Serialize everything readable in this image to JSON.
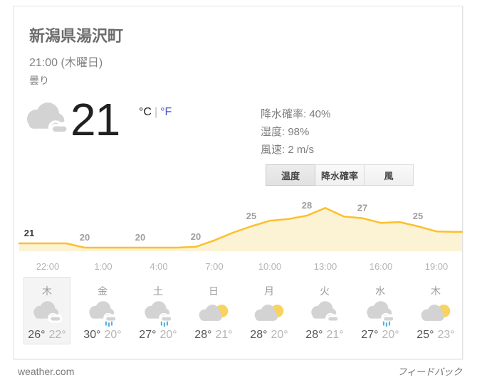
{
  "header": {
    "location": "新潟県湯沢町",
    "datetime": "21:00 (木曜日)",
    "condition": "曇り"
  },
  "current": {
    "temp": "21",
    "unit_c": "°C",
    "unit_sep": "|",
    "unit_f": "°F",
    "icon": "cloudy",
    "details": [
      {
        "label": "降水確率",
        "value": "40%"
      },
      {
        "label": "湿度",
        "value": "98%"
      },
      {
        "label": "風速",
        "value": "2 m/s"
      }
    ]
  },
  "tabs": [
    {
      "label": "温度",
      "selected": true
    },
    {
      "label": "降水確率",
      "selected": false
    },
    {
      "label": "風",
      "selected": false
    }
  ],
  "chart_data": {
    "type": "area",
    "series_name": "温度",
    "unit": "°C",
    "x_axis_labels": [
      "22:00",
      "1:00",
      "4:00",
      "7:00",
      "10:00",
      "13:00",
      "16:00",
      "19:00"
    ],
    "hourly": {
      "start_time": "21:00",
      "interval_hours": 1,
      "values": [
        21,
        21,
        21,
        20,
        20,
        20,
        20,
        20,
        20,
        20.2,
        21.7,
        23.5,
        25,
        26.3,
        26.7,
        27.5,
        29.3,
        27.3,
        26.9,
        25.8,
        26,
        25,
        23.8,
        23.7
      ]
    },
    "point_labels": [
      {
        "time": "21:00",
        "text": "21",
        "current": true
      },
      {
        "time": "0:00",
        "text": "20",
        "current": false
      },
      {
        "time": "3:00",
        "text": "20",
        "current": false
      },
      {
        "time": "6:00",
        "text": "20",
        "current": false
      },
      {
        "time": "9:00",
        "text": "25",
        "current": false
      },
      {
        "time": "12:00",
        "text": "28",
        "current": false
      },
      {
        "time": "15:00",
        "text": "27",
        "current": false
      },
      {
        "time": "18:00",
        "text": "25",
        "current": false
      }
    ],
    "ylim": [
      18,
      31
    ],
    "grid": false,
    "legend": false
  },
  "daily": [
    {
      "day": "木",
      "icon": "cloudy",
      "high": "26°",
      "low": "22°",
      "selected": true
    },
    {
      "day": "金",
      "icon": "rain",
      "high": "30°",
      "low": "20°",
      "selected": false
    },
    {
      "day": "土",
      "icon": "rain",
      "high": "27°",
      "low": "20°",
      "selected": false
    },
    {
      "day": "日",
      "icon": "partly-sunny",
      "high": "28°",
      "low": "21°",
      "selected": false
    },
    {
      "day": "月",
      "icon": "partly-sunny",
      "high": "28°",
      "low": "20°",
      "selected": false
    },
    {
      "day": "火",
      "icon": "cloudy",
      "high": "28°",
      "low": "21°",
      "selected": false
    },
    {
      "day": "水",
      "icon": "rain",
      "high": "27°",
      "low": "20°",
      "selected": false
    },
    {
      "day": "木",
      "icon": "partly-sunny",
      "high": "25°",
      "low": "23°",
      "selected": false
    }
  ],
  "footer": {
    "source": "weather.com",
    "feedback": "フィードバック"
  },
  "colors": {
    "accent_line": "#fbc02d",
    "area_fill": "#fcf3d5",
    "cloud_gray": "#d3d3d3",
    "sun_yellow": "#f8d35f",
    "rain_blue": "#54b0e0",
    "link_blue": "#4a4fcf",
    "label_gray": "#9e9e9e",
    "label_dark": "#3a3a3a",
    "axis_gray": "#b4b4b4"
  }
}
